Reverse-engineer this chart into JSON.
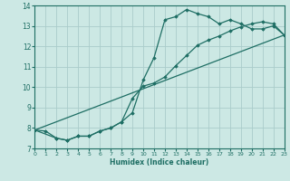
{
  "xlabel": "Humidex (Indice chaleur)",
  "xlim": [
    0,
    23
  ],
  "ylim": [
    7,
    14
  ],
  "yticks": [
    7,
    8,
    9,
    10,
    11,
    12,
    13,
    14
  ],
  "xticks": [
    0,
    1,
    2,
    3,
    4,
    5,
    6,
    7,
    8,
    9,
    10,
    11,
    12,
    13,
    14,
    15,
    16,
    17,
    18,
    19,
    20,
    21,
    22,
    23
  ],
  "bg_color": "#cce8e4",
  "grid_color": "#aaccca",
  "line_color": "#1e6e64",
  "lines": [
    {
      "x": [
        0,
        1,
        2,
        3,
        4,
        5,
        6,
        7,
        8,
        9,
        10,
        11,
        12,
        13,
        14,
        15,
        16,
        17,
        18,
        19,
        20,
        21,
        22,
        23
      ],
      "y": [
        7.9,
        7.85,
        7.5,
        7.4,
        7.6,
        7.6,
        7.85,
        8.0,
        8.3,
        8.75,
        10.35,
        11.45,
        13.3,
        13.45,
        13.8,
        13.6,
        13.45,
        13.1,
        13.3,
        13.1,
        12.85,
        12.85,
        13.0,
        12.55
      ]
    },
    {
      "x": [
        0,
        2,
        3,
        4,
        5,
        6,
        7,
        8,
        9,
        10,
        11,
        12,
        13,
        14,
        15,
        16,
        17,
        18,
        19,
        20,
        21,
        22,
        23
      ],
      "y": [
        7.9,
        7.5,
        7.4,
        7.6,
        7.6,
        7.85,
        8.0,
        8.3,
        9.45,
        10.05,
        10.2,
        10.5,
        11.05,
        11.55,
        12.05,
        12.3,
        12.5,
        12.75,
        12.95,
        13.1,
        13.2,
        13.1,
        12.55
      ]
    },
    {
      "x": [
        0,
        23
      ],
      "y": [
        7.9,
        12.55
      ]
    }
  ]
}
